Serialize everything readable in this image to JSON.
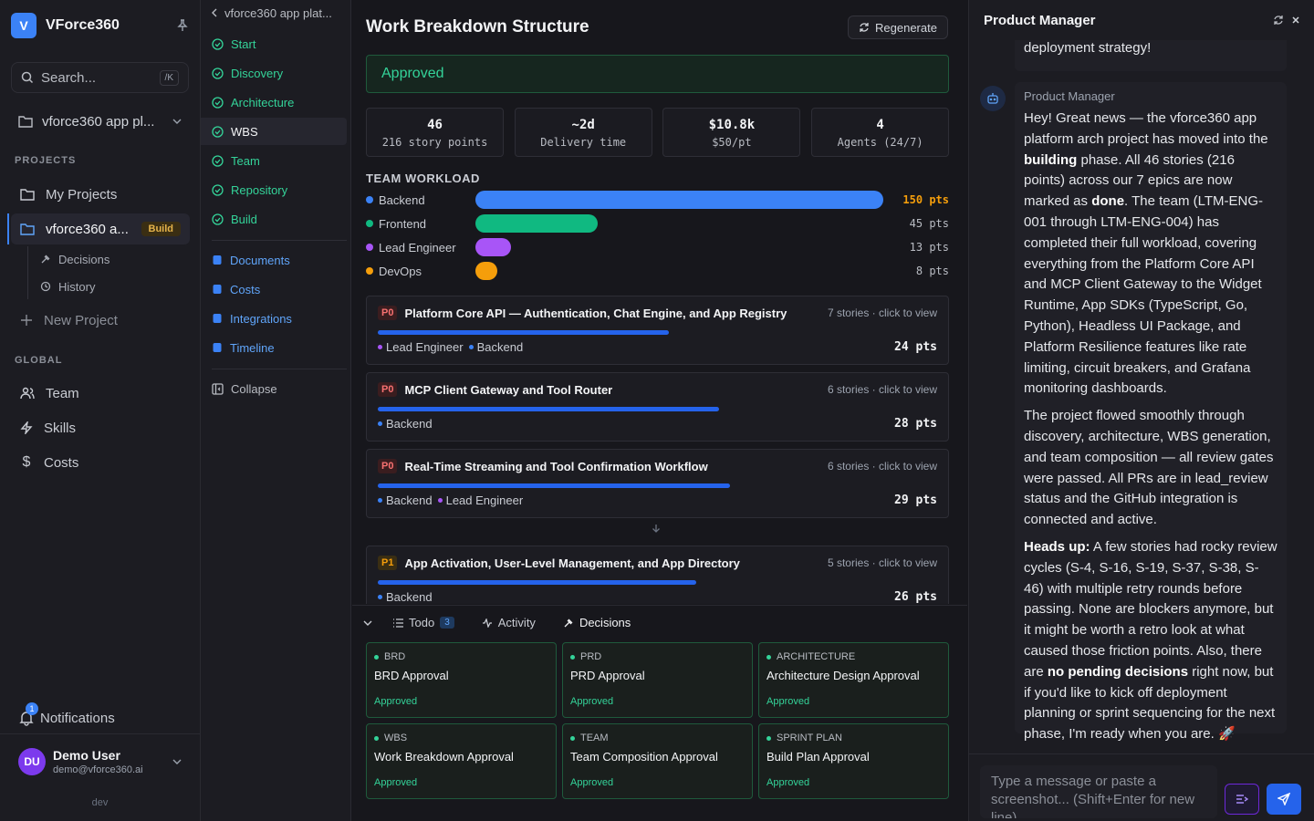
{
  "sidebar": {
    "logo_letter": "V",
    "app_name": "VForce360",
    "search_placeholder": "Search...",
    "search_shortcut": "/K",
    "project_selector": "vforce360 app pl...",
    "projects_label": "PROJECTS",
    "my_projects": "My Projects",
    "current_project": "vforce360 a...",
    "current_project_badge": "Build",
    "sub_items": [
      "Decisions",
      "History"
    ],
    "new_project": "New Project",
    "global_label": "GLOBAL",
    "global_items": [
      "Team",
      "Skills",
      "Costs"
    ],
    "notifications_label": "Notifications",
    "notifications_count": "1",
    "user": {
      "initials": "DU",
      "name": "Demo User",
      "email": "demo@vforce360.ai"
    },
    "env": "dev"
  },
  "phase_nav": {
    "back_label": "vforce360 app plat...",
    "phases": [
      "Start",
      "Discovery",
      "Architecture",
      "WBS",
      "Team",
      "Repository",
      "Build"
    ],
    "active_phase": "WBS",
    "links": [
      "Documents",
      "Costs",
      "Integrations",
      "Timeline"
    ],
    "collapse": "Collapse"
  },
  "main": {
    "title": "Work Breakdown Structure",
    "regenerate": "Regenerate",
    "status": "Approved",
    "stats": [
      {
        "value": "46",
        "label": "216 story points"
      },
      {
        "value": "~2d",
        "label": "Delivery time"
      },
      {
        "value": "$10.8k",
        "label": "$50/pt"
      },
      {
        "value": "4",
        "label": "Agents (24/7)"
      }
    ],
    "workload_title": "TEAM WORKLOAD",
    "workload": [
      {
        "name": "Backend",
        "points": 150,
        "label": "150 pts",
        "color": "#3b82f6"
      },
      {
        "name": "Frontend",
        "points": 45,
        "label": "45 pts",
        "color": "#10b981"
      },
      {
        "name": "Lead Engineer",
        "points": 13,
        "label": "13 pts",
        "color": "#a855f7"
      },
      {
        "name": "DevOps",
        "points": 8,
        "label": "8 pts",
        "color": "#f59e0b"
      }
    ],
    "epics": [
      {
        "priority": "P0",
        "name": "Platform Core API — Authentication, Chat Engine, and App Registry",
        "meta": "7 stories · click to view",
        "progress": 0.52,
        "tags": [
          {
            "name": "Lead Engineer",
            "color": "#a855f7"
          },
          {
            "name": "Backend",
            "color": "#3b82f6"
          }
        ],
        "points": "24 pts"
      },
      {
        "priority": "P0",
        "name": "MCP Client Gateway and Tool Router",
        "meta": "6 stories · click to view",
        "progress": 0.61,
        "tags": [
          {
            "name": "Backend",
            "color": "#3b82f6"
          }
        ],
        "points": "28 pts"
      },
      {
        "priority": "P0",
        "name": "Real-Time Streaming and Tool Confirmation Workflow",
        "meta": "6 stories · click to view",
        "progress": 0.63,
        "tags": [
          {
            "name": "Backend",
            "color": "#3b82f6"
          },
          {
            "name": "Lead Engineer",
            "color": "#a855f7"
          }
        ],
        "points": "29 pts"
      },
      {
        "priority": "P1",
        "name": "App Activation, User-Level Management, and App Directory",
        "meta": "5 stories · click to view",
        "progress": 0.57,
        "tags": [
          {
            "name": "Backend",
            "color": "#3b82f6"
          }
        ],
        "points": "26 pts"
      }
    ],
    "tabs": {
      "todo": "Todo",
      "todo_count": "3",
      "activity": "Activity",
      "decisions": "Decisions"
    },
    "decisions": [
      {
        "kind": "BRD",
        "name": "BRD Approval",
        "status": "Approved"
      },
      {
        "kind": "PRD",
        "name": "PRD Approval",
        "status": "Approved"
      },
      {
        "kind": "ARCHITECTURE",
        "name": "Architecture Design Approval",
        "status": "Approved"
      },
      {
        "kind": "WBS",
        "name": "Work Breakdown Approval",
        "status": "Approved"
      },
      {
        "kind": "TEAM",
        "name": "Team Composition Approval",
        "status": "Approved"
      },
      {
        "kind": "SPRINT PLAN",
        "name": "Build Plan Approval",
        "status": "Approved"
      }
    ]
  },
  "chat": {
    "title": "Product Manager",
    "prev_tail": "deployment strategy!",
    "sender": "Product Manager",
    "p1": [
      "Hey! Great news — the vforce360 app platform arch project has moved into the ",
      "building",
      " phase. All 46 stories (216 points) across our 7 epics are now marked as ",
      "done",
      ". The team (LTM-ENG-001 through LTM-ENG-004) has completed their full workload, covering everything from the Platform Core API and MCP Client Gateway to the Widget Runtime, App SDKs (TypeScript, Go, Python), Headless UI Package, and Platform Resilience features like rate limiting, circuit breakers, and Grafana monitoring dashboards."
    ],
    "p2": "The project flowed smoothly through discovery, architecture, WBS generation, and team composition — all review gates were passed. All PRs are in lead_review status and the GitHub integration is connected and active.",
    "p3": [
      "Heads up:",
      " A few stories had rocky review cycles (S-4, S-16, S-19, S-37, S-38, S-46) with multiple retry rounds before passing. None are blockers anymore, but it might be worth a retro look at what caused those friction points. Also, there are ",
      "no pending decisions",
      " right now, but if you'd like to kick off deployment planning or sprint sequencing for the next phase, I'm ready when you are. 🚀"
    ],
    "input_placeholder": "Type a message or paste a screenshot... (Shift+Enter for new line)"
  }
}
